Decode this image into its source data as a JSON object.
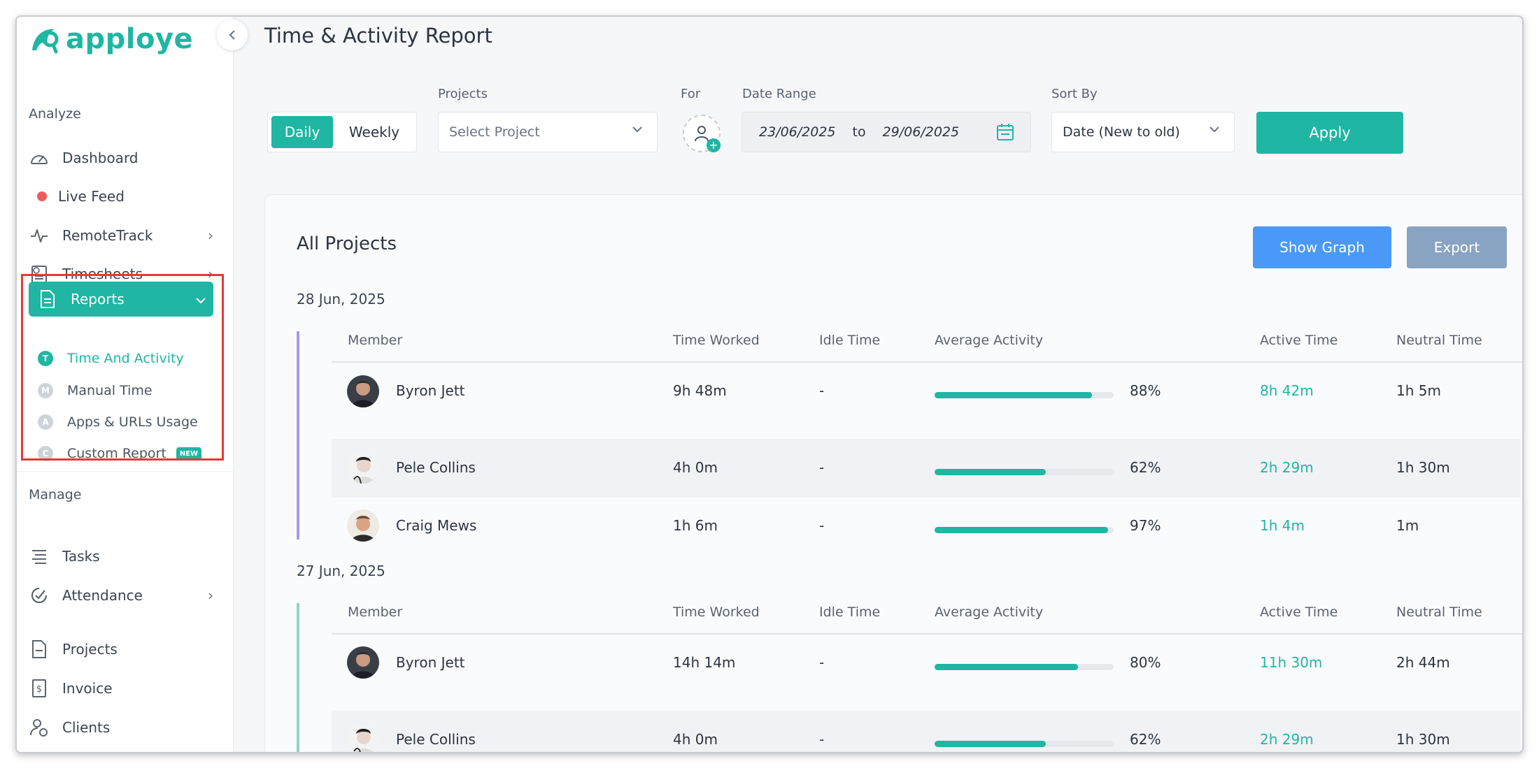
{
  "app": {
    "name": "apploye"
  },
  "sidebar": {
    "analyze_title": "Analyze",
    "manage_title": "Manage",
    "items": {
      "dashboard": "Dashboard",
      "live_feed": "Live Feed",
      "remotetrack": "RemoteTrack",
      "timesheets": "Timesheets",
      "reports": "Reports",
      "tasks": "Tasks",
      "attendance": "Attendance",
      "projects": "Projects",
      "invoice": "Invoice",
      "clients": "Clients"
    },
    "report_sub": [
      {
        "badge": "T",
        "label": "Time And Activity",
        "active": true
      },
      {
        "badge": "M",
        "label": "Manual Time"
      },
      {
        "badge": "A",
        "label": "Apps & URLs Usage"
      },
      {
        "badge": "C",
        "label": "Custom Report",
        "tag": "NEW"
      }
    ]
  },
  "header": {
    "title": "Time & Activity Report"
  },
  "filters": {
    "view_daily": "Daily",
    "view_weekly": "Weekly",
    "projects_label": "Projects",
    "projects_placeholder": "Select Project",
    "for_label": "For",
    "date_range_label": "Date Range",
    "date_from": "23/06/2025",
    "date_to_word": "to",
    "date_to": "29/06/2025",
    "sort_label": "Sort By",
    "sort_value": "Date (New to old)",
    "apply": "Apply"
  },
  "report": {
    "title": "All Projects",
    "show_graph": "Show Graph",
    "export": "Export",
    "columns": [
      "Member",
      "Time Worked",
      "Idle Time",
      "Average Activity",
      "Active Time",
      "Neutral Time"
    ],
    "groups": [
      {
        "date": "28 Jun, 2025",
        "accent": "#a39cf0",
        "rows": [
          {
            "member": "Byron Jett",
            "time_worked": "9h 48m",
            "idle": "-",
            "activity_pct": 88,
            "activity": "88%",
            "active": "8h 42m",
            "neutral": "1h 5m"
          },
          {
            "member": "Pele Collins",
            "time_worked": "4h 0m",
            "idle": "-",
            "activity_pct": 62,
            "activity": "62%",
            "active": "2h 29m",
            "neutral": "1h 30m"
          },
          {
            "member": "Craig Mews",
            "time_worked": "1h 6m",
            "idle": "-",
            "activity_pct": 97,
            "activity": "97%",
            "active": "1h 4m",
            "neutral": "1m"
          }
        ]
      },
      {
        "date": "27 Jun, 2025",
        "accent": "#8fd6c0",
        "rows": [
          {
            "member": "Byron Jett",
            "time_worked": "14h 14m",
            "idle": "-",
            "activity_pct": 80,
            "activity": "80%",
            "active": "11h 30m",
            "neutral": "2h 44m"
          },
          {
            "member": "Pele Collins",
            "time_worked": "4h 0m",
            "idle": "-",
            "activity_pct": 62,
            "activity": "62%",
            "active": "2h 29m",
            "neutral": "1h 30m"
          }
        ]
      }
    ]
  },
  "colors": {
    "brand": "#1fb6a3",
    "blue": "#4a99f7",
    "export": "#89a4c2",
    "live": "#ef5a5a",
    "highlight": "#e53935"
  }
}
